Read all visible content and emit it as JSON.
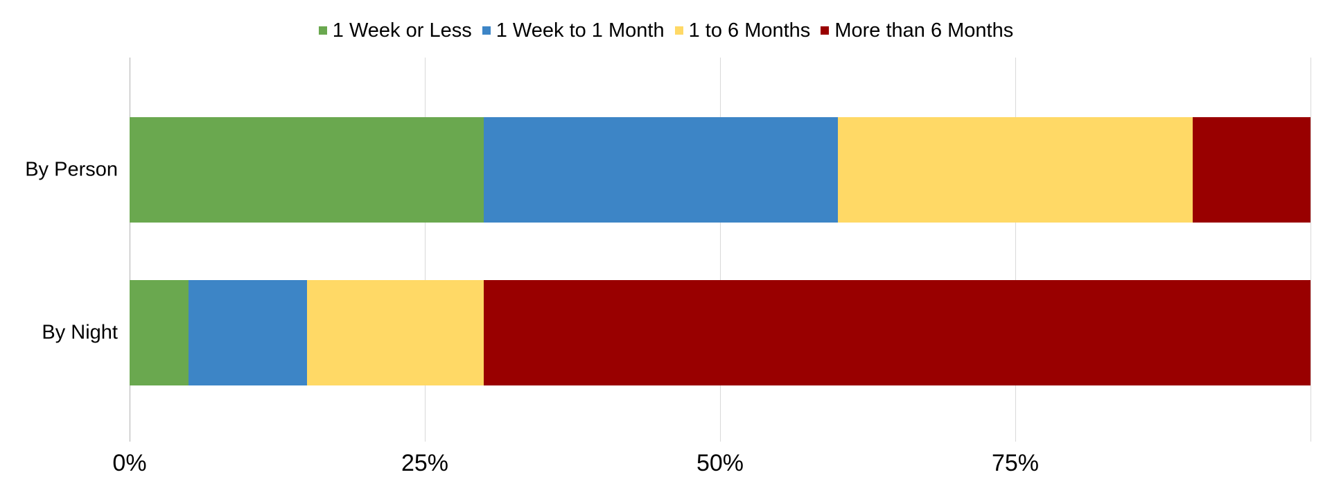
{
  "chart_data": {
    "type": "bar",
    "orientation": "horizontal",
    "stacked": true,
    "title": "",
    "categories": [
      "By Person",
      "By Night"
    ],
    "series": [
      {
        "name": "1 Week or Less",
        "color": "#6aa84f",
        "values": [
          30,
          5
        ]
      },
      {
        "name": "1 Week to 1 Month",
        "color": "#3d85c6",
        "values": [
          30,
          10
        ]
      },
      {
        "name": "1 to 6 Months",
        "color": "#ffd966",
        "values": [
          30,
          15
        ]
      },
      {
        "name": "More than 6 Months",
        "color": "#990000",
        "values": [
          10,
          70
        ]
      }
    ],
    "x_axis": {
      "unit": "%",
      "range": [
        0,
        100
      ],
      "tick_labels": [
        "0%",
        "25%",
        "50%",
        "75%"
      ],
      "tick_values": [
        0,
        25,
        50,
        75
      ],
      "gridline_values": [
        0,
        25,
        50,
        75,
        100
      ]
    },
    "legend_position": "top",
    "grid": true
  },
  "colors": {
    "background": "#ffffff",
    "gridline": "#d9d9d9",
    "baseline": "#b0b0b0",
    "text": "#000000"
  }
}
